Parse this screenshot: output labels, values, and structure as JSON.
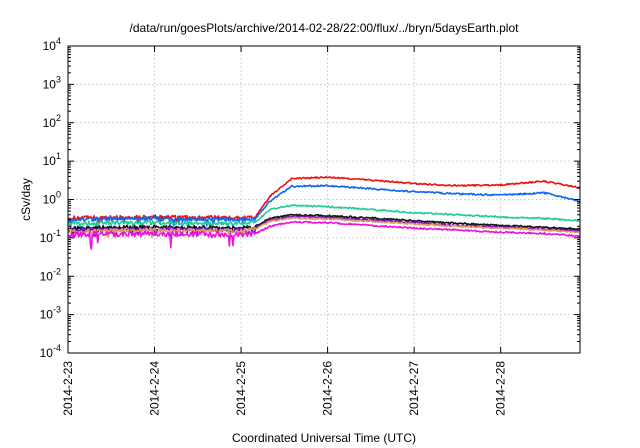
{
  "chart_data": {
    "type": "line",
    "title": "/data/run/goesPlots/archive/2014-02-28/22:00/flux/../bryn/5daysEarth.plot",
    "xlabel": "Coordinated Universal Time (UTC)",
    "ylabel": "cSv/day",
    "yscale": "log",
    "ylim": [
      0.0001,
      10000
    ],
    "xlim": [
      "2014-02-23T00:00",
      "2014-02-28T22:00"
    ],
    "x_ticks": [
      "2014-2-23",
      "2014-2-24",
      "2014-2-25",
      "2014-2-26",
      "2014-2-27",
      "2014-2-28"
    ],
    "y_ticks": [
      {
        "value": 0.0001,
        "base": "10",
        "exp": "-4"
      },
      {
        "value": 0.001,
        "base": "10",
        "exp": "-3"
      },
      {
        "value": 0.01,
        "base": "10",
        "exp": "-2"
      },
      {
        "value": 0.1,
        "base": "10",
        "exp": "-1"
      },
      {
        "value": 1,
        "base": "10",
        "exp": "0"
      },
      {
        "value": 10,
        "base": "10",
        "exp": "1"
      },
      {
        "value": 100,
        "base": "10",
        "exp": "2"
      },
      {
        "value": 1000,
        "base": "10",
        "exp": "3"
      },
      {
        "value": 10000,
        "base": "10",
        "exp": "4"
      }
    ],
    "grid": true,
    "legend": "none",
    "series": [
      {
        "color": "#ee1111",
        "x": [
          "2014-02-23T00:00",
          "2014-02-24T00:00",
          "2014-02-25T00:00",
          "2014-02-25T04:00",
          "2014-02-25T08:00",
          "2014-02-25T14:00",
          "2014-02-26T00:00",
          "2014-02-26T12:00",
          "2014-02-27T00:00",
          "2014-02-27T12:00",
          "2014-02-28T00:00",
          "2014-02-28T12:00",
          "2014-02-28T22:00"
        ],
        "values": [
          0.33,
          0.35,
          0.33,
          0.35,
          1.2,
          3.5,
          3.8,
          3.2,
          2.6,
          2.3,
          2.4,
          3.0,
          2.0
        ]
      },
      {
        "color": "#1166ee",
        "x": [
          "2014-02-23T00:00",
          "2014-02-24T00:00",
          "2014-02-25T00:00",
          "2014-02-25T04:00",
          "2014-02-25T08:00",
          "2014-02-25T14:00",
          "2014-02-26T00:00",
          "2014-02-26T12:00",
          "2014-02-27T00:00",
          "2014-02-27T12:00",
          "2014-02-28T00:00",
          "2014-02-28T12:00",
          "2014-02-28T22:00"
        ],
        "values": [
          0.3,
          0.32,
          0.3,
          0.32,
          0.9,
          2.2,
          2.3,
          1.9,
          1.6,
          1.4,
          1.3,
          1.5,
          0.9
        ]
      },
      {
        "color": "#22cc99",
        "x": [
          "2014-02-23T00:00",
          "2014-02-24T00:00",
          "2014-02-25T00:00",
          "2014-02-25T04:00",
          "2014-02-25T08:00",
          "2014-02-25T14:00",
          "2014-02-26T00:00",
          "2014-02-26T12:00",
          "2014-02-27T00:00",
          "2014-02-27T12:00",
          "2014-02-28T00:00",
          "2014-02-28T12:00",
          "2014-02-28T22:00"
        ],
        "values": [
          0.24,
          0.25,
          0.24,
          0.26,
          0.55,
          0.7,
          0.65,
          0.55,
          0.45,
          0.4,
          0.35,
          0.32,
          0.28
        ]
      },
      {
        "color": "#111111",
        "x": [
          "2014-02-23T00:00",
          "2014-02-24T00:00",
          "2014-02-25T00:00",
          "2014-02-25T04:00",
          "2014-02-25T08:00",
          "2014-02-25T14:00",
          "2014-02-26T00:00",
          "2014-02-26T12:00",
          "2014-02-27T00:00",
          "2014-02-27T12:00",
          "2014-02-28T00:00",
          "2014-02-28T12:00",
          "2014-02-28T22:00"
        ],
        "values": [
          0.18,
          0.19,
          0.18,
          0.2,
          0.32,
          0.4,
          0.38,
          0.33,
          0.28,
          0.24,
          0.21,
          0.19,
          0.17
        ]
      },
      {
        "color": "#7711bb",
        "x": [
          "2014-02-23T00:00",
          "2014-02-24T00:00",
          "2014-02-25T00:00",
          "2014-02-25T04:00",
          "2014-02-25T08:00",
          "2014-02-25T14:00",
          "2014-02-26T00:00",
          "2014-02-26T12:00",
          "2014-02-27T00:00",
          "2014-02-27T12:00",
          "2014-02-28T00:00",
          "2014-02-28T12:00",
          "2014-02-28T22:00"
        ],
        "values": [
          0.16,
          0.17,
          0.16,
          0.18,
          0.29,
          0.36,
          0.34,
          0.29,
          0.25,
          0.21,
          0.19,
          0.17,
          0.15
        ]
      },
      {
        "color": "#dd9966",
        "x": [
          "2014-02-23T00:00",
          "2014-02-24T00:00",
          "2014-02-25T00:00",
          "2014-02-25T04:00",
          "2014-02-25T08:00",
          "2014-02-25T14:00",
          "2014-02-26T00:00",
          "2014-02-26T12:00",
          "2014-02-27T00:00",
          "2014-02-27T12:00",
          "2014-02-28T00:00",
          "2014-02-28T12:00",
          "2014-02-28T22:00"
        ],
        "values": [
          0.15,
          0.16,
          0.15,
          0.17,
          0.27,
          0.33,
          0.31,
          0.27,
          0.23,
          0.2,
          0.18,
          0.16,
          0.14
        ]
      },
      {
        "color": "#ee11dd",
        "x": [
          "2014-02-23T00:00",
          "2014-02-24T00:00",
          "2014-02-25T00:00",
          "2014-02-25T04:00",
          "2014-02-25T08:00",
          "2014-02-25T14:00",
          "2014-02-26T00:00",
          "2014-02-26T12:00",
          "2014-02-27T00:00",
          "2014-02-27T12:00",
          "2014-02-28T00:00",
          "2014-02-28T12:00",
          "2014-02-28T22:00"
        ],
        "values": [
          0.12,
          0.13,
          0.12,
          0.13,
          0.2,
          0.26,
          0.25,
          0.21,
          0.18,
          0.16,
          0.14,
          0.13,
          0.11
        ]
      }
    ]
  }
}
